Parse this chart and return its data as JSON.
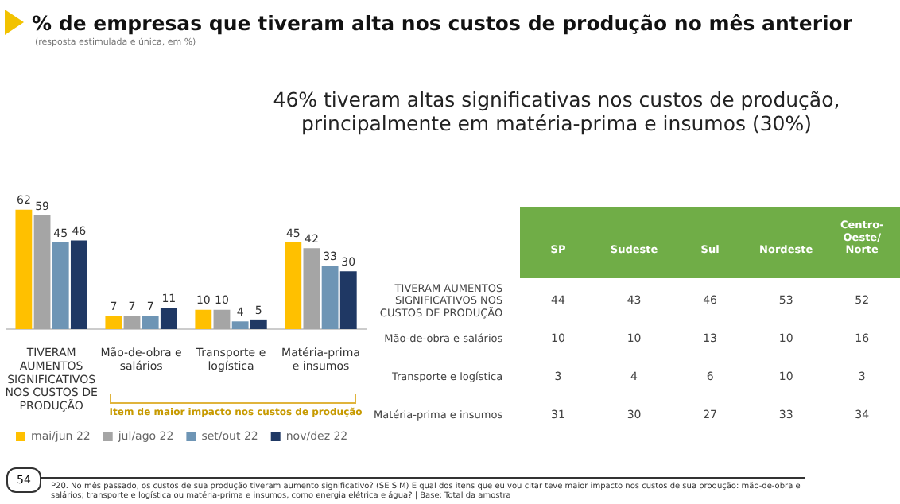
{
  "chart_data": [
    {
      "type": "bar",
      "title": "% de empresas que tiveram alta nos custos de produção no mês anterior",
      "subtitle": "(resposta estimulada e única, em %)",
      "categories": [
        "TIVERAM AUMENTOS SIGNIFICATIVOS NOS CUSTOS DE PRODUÇÃO",
        "Mão-de-obra e salários",
        "Transporte e logística",
        "Matéria-prima e insumos"
      ],
      "series": [
        {
          "name": "mai/jun 22",
          "color": "#ffc000",
          "values": [
            62,
            7,
            10,
            45
          ]
        },
        {
          "name": "jul/ago 22",
          "color": "#a5a5a5",
          "values": [
            59,
            7,
            10,
            42
          ]
        },
        {
          "name": "set/out 22",
          "color": "#6e95b5",
          "values": [
            45,
            7,
            4,
            33
          ]
        },
        {
          "name": "nov/dez 22",
          "color": "#1f3864",
          "values": [
            46,
            11,
            5,
            30
          ]
        }
      ],
      "data_labels": true,
      "legend": "bottom",
      "grid": false,
      "annotations": [
        "46% tiveram altas significativas nos custos de produção, principalmente em matéria-prima e insumos (30%)",
        "Item de maior impacto nos custos de produção",
        "54",
        "P20. No mês passado, os custos de sua produção tiveram aumento significativo? (SE SIM) E qual dos itens que eu vou citar teve maior impacto nos custos de sua produção: mão-de-obra e salários; transporte e logística ou matéria-prima e insumos, como energia elétrica e água? | Base: Total da amostra"
      ]
    },
    {
      "type": "heatmap",
      "categories": [
        "SP",
        "Sudeste",
        "Sul",
        "Nordeste",
        "Centro-Oeste/ Norte"
      ],
      "y_categories": [
        "TIVERAM AUMENTOS SIGNIFICATIVOS NOS CUSTOS DE PRODUÇÃO",
        "Mão-de-obra e salários",
        "Transporte e logística",
        "Matéria-prima e insumos"
      ],
      "cells": [
        [
          44,
          43,
          46,
          53,
          52
        ],
        [
          10,
          10,
          13,
          10,
          16
        ],
        [
          3,
          4,
          6,
          10,
          3
        ],
        [
          31,
          30,
          27,
          33,
          34
        ]
      ],
      "data_labels": true
    }
  ]
}
